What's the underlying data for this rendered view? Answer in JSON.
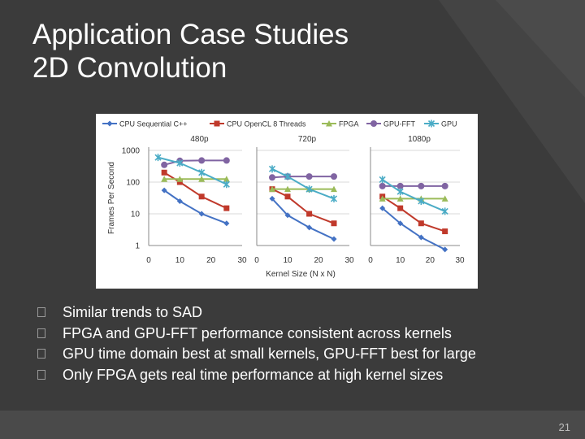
{
  "slide": {
    "title_line1": "Application Case Studies",
    "title_line2": "2D Convolution",
    "bullets": [
      "Similar trends to SAD",
      "FPGA and GPU-FFT performance consistent across kernels",
      "GPU time domain best at small kernels, GPU-FFT best for large",
      "Only FPGA gets real time performance at high kernel sizes"
    ],
    "page_number": "21"
  },
  "chart_data": {
    "type": "line",
    "y_scale": "log",
    "ylabel": "Frames Per Second",
    "xlabel": "Kernel Size (N x N)",
    "ylim": [
      1,
      1000
    ],
    "y_ticks": [
      "1",
      "10",
      "100",
      "1000"
    ],
    "x_ticks": [
      "0",
      "10",
      "20",
      "30"
    ],
    "xlim": [
      0,
      30
    ],
    "legend": [
      "CPU Sequential C++",
      "CPU OpenCL 8 Threads",
      "FPGA",
      "GPU-FFT",
      "GPU"
    ],
    "colors": {
      "cpu_seq": "#4472c4",
      "cpu_ocl": "#c0392b",
      "fpga": "#9bbb59",
      "gpu_fft": "#8064a2",
      "gpu": "#4bacc6"
    },
    "panels": [
      {
        "label": "480p",
        "series": [
          {
            "name": "CPU Sequential C++",
            "x": [
              5,
              10,
              17,
              25
            ],
            "y": [
              55,
              25,
              10,
              5
            ]
          },
          {
            "name": "CPU OpenCL 8 Threads",
            "x": [
              5,
              10,
              17,
              25
            ],
            "y": [
              200,
              100,
              35,
              15
            ]
          },
          {
            "name": "FPGA",
            "x": [
              5,
              10,
              17,
              25
            ],
            "y": [
              125,
              125,
              125,
              125
            ]
          },
          {
            "name": "GPU-FFT",
            "x": [
              5,
              10,
              17,
              25
            ],
            "y": [
              350,
              470,
              480,
              480
            ]
          },
          {
            "name": "GPU",
            "x": [
              3,
              10,
              17,
              25
            ],
            "y": [
              600,
              400,
              200,
              85
            ]
          }
        ]
      },
      {
        "label": "720p",
        "series": [
          {
            "name": "CPU Sequential C++",
            "x": [
              5,
              10,
              17,
              25
            ],
            "y": [
              30,
              9,
              3.7,
              1.6
            ]
          },
          {
            "name": "CPU OpenCL 8 Threads",
            "x": [
              5,
              10,
              17,
              25
            ],
            "y": [
              60,
              35,
              10,
              5
            ]
          },
          {
            "name": "FPGA",
            "x": [
              5,
              10,
              17,
              25
            ],
            "y": [
              60,
              60,
              60,
              60
            ]
          },
          {
            "name": "GPU-FFT",
            "x": [
              5,
              10,
              17,
              25
            ],
            "y": [
              140,
              150,
              150,
              150
            ]
          },
          {
            "name": "GPU",
            "x": [
              5,
              10,
              17,
              25
            ],
            "y": [
              260,
              150,
              60,
              30
            ]
          }
        ]
      },
      {
        "label": "1080p",
        "series": [
          {
            "name": "CPU Sequential C++",
            "x": [
              4,
              10,
              17,
              25
            ],
            "y": [
              15,
              5,
              1.8,
              0.75
            ]
          },
          {
            "name": "CPU OpenCL 8 Threads",
            "x": [
              4,
              10,
              17,
              25
            ],
            "y": [
              35,
              15,
              5,
              2.8
            ]
          },
          {
            "name": "FPGA",
            "x": [
              4,
              10,
              17,
              25
            ],
            "y": [
              30,
              30,
              30,
              30
            ]
          },
          {
            "name": "GPU-FFT",
            "x": [
              4,
              10,
              17,
              25
            ],
            "y": [
              75,
              75,
              75,
              75
            ]
          },
          {
            "name": "GPU",
            "x": [
              4,
              10,
              17,
              25
            ],
            "y": [
              120,
              50,
              25,
              12
            ]
          }
        ]
      }
    ]
  }
}
